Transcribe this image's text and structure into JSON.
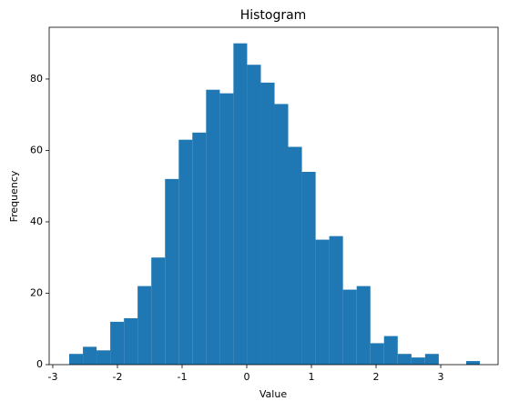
{
  "chart_data": {
    "type": "histogram",
    "title": "Histogram",
    "x_label": "Value",
    "y_label": "Frequency",
    "bins": [
      -2.746,
      -2.534,
      -2.323,
      -2.111,
      -1.899,
      -1.688,
      -1.476,
      -1.264,
      -1.052,
      -0.841,
      -0.629,
      -0.417,
      -0.206,
      0.006,
      0.218,
      0.43,
      0.641,
      0.853,
      1.065,
      1.276,
      1.488,
      1.7,
      1.912,
      2.123,
      2.335,
      2.547,
      2.758,
      2.97,
      3.182,
      3.394,
      3.605
    ],
    "values": [
      3,
      5,
      4,
      12,
      13,
      22,
      30,
      52,
      63,
      65,
      77,
      76,
      90,
      84,
      79,
      73,
      61,
      54,
      35,
      36,
      21,
      22,
      6,
      8,
      3,
      2,
      3,
      0,
      0,
      1
    ],
    "color": "#1f77b4",
    "xlim": [
      -3.056,
      3.887
    ],
    "xticks": [
      -3,
      -2,
      -1,
      0,
      1,
      2,
      3
    ],
    "ylim": [
      0,
      94.5
    ],
    "yticks": [
      0,
      20,
      40,
      60,
      80
    ]
  }
}
